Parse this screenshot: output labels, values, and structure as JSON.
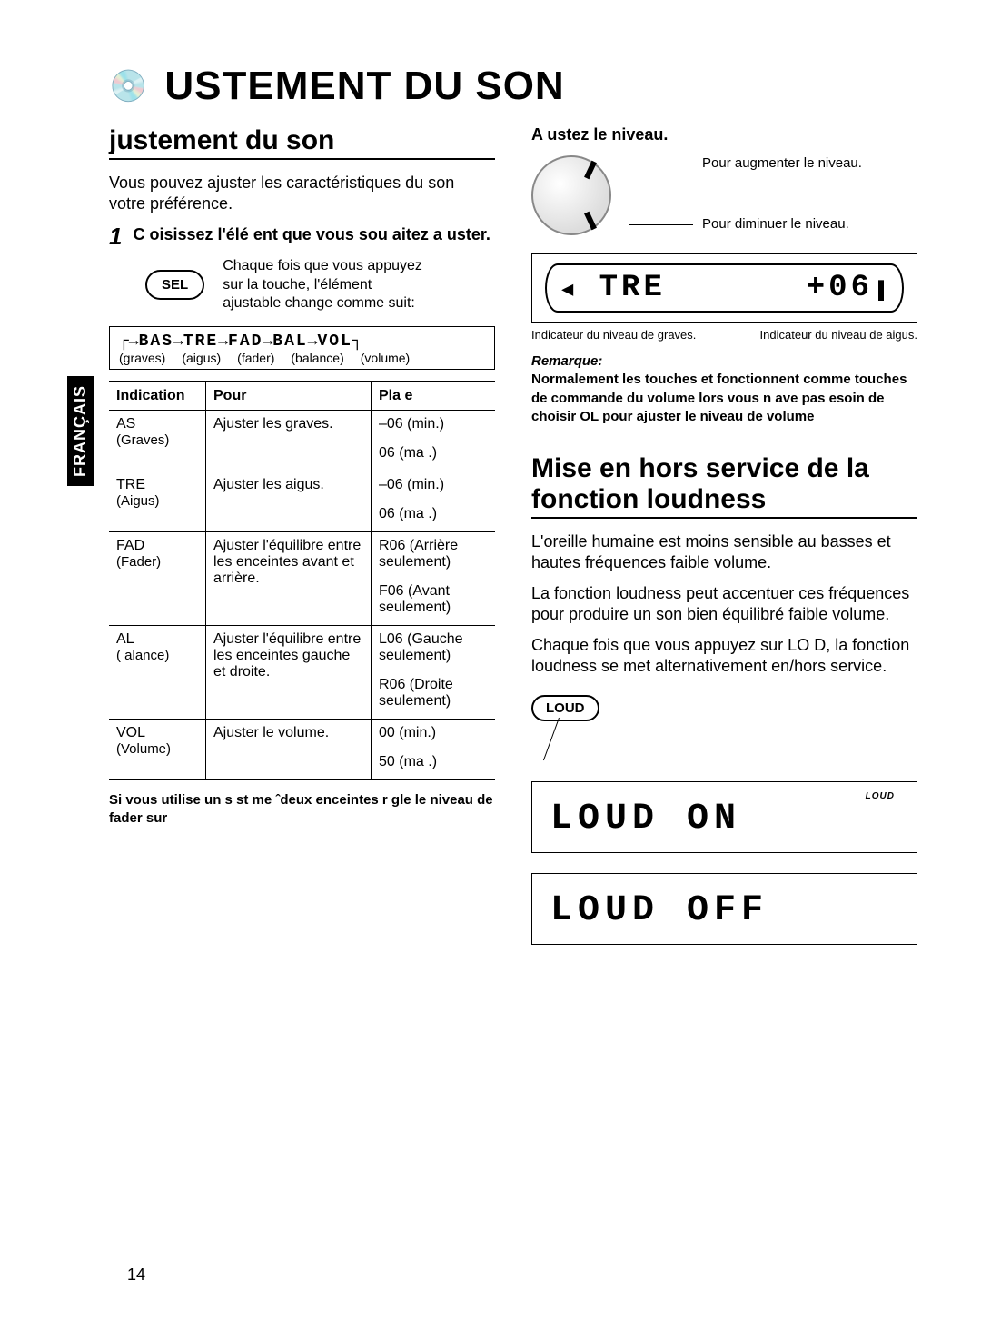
{
  "page": {
    "title_main": "USTEMENT DU SON",
    "language_tab": "FRANÇAIS",
    "page_number": "14"
  },
  "left": {
    "section_heading": "justement du son",
    "intro": "Vous pouvez ajuster les caractéristiques du son votre préférence.",
    "step1": {
      "num": "1",
      "title": "C oisissez l'élé ent que vous sou aitez a uster.",
      "sel_label": "SEL",
      "sel_desc": "Chaque fois que vous appuyez sur la touche, l'élément ajustable change comme suit:",
      "flow_items": [
        "BAS",
        "TRE",
        "FAD",
        "BAL",
        "VOL"
      ],
      "flow_labels": [
        "(graves)",
        "(aigus)",
        "(fader)",
        "(balance)",
        "(volume)"
      ]
    },
    "table": {
      "headers": [
        "Indication",
        "Pour",
        "Pla e"
      ],
      "rows": [
        {
          "ind": "AS",
          "ind_sub": "(Graves)",
          "pour": "Ajuster les graves.",
          "range1": "–06 (min.)",
          "range2": "06 (ma .)"
        },
        {
          "ind": "TRE",
          "ind_sub": "(Aigus)",
          "pour": "Ajuster les aigus.",
          "range1": "–06 (min.)",
          "range2": "06 (ma .)"
        },
        {
          "ind": "FAD",
          "ind_sub": "(Fader)",
          "pour": "Ajuster l'équilibre entre les enceintes avant et arrière.",
          "range1": "R06 (Arrière seulement)",
          "range2": "F06 (Avant seulement)"
        },
        {
          "ind": "AL",
          "ind_sub": "( alance)",
          "pour": "Ajuster l'équilibre entre les enceintes gauche et droite.",
          "range1": "L06 (Gauche seulement)",
          "range2": "R06 (Droite seulement)"
        },
        {
          "ind": "VOL",
          "ind_sub": "(Volume)",
          "pour": "Ajuster le volume.",
          "range1": "00 (min.)",
          "range2": "50 (ma .)"
        }
      ]
    },
    "footnote": "Si vous utilise  un s st me ˆdeux enceintes  r gle le niveau de fader sur"
  },
  "right": {
    "step2_title": "A ustez le niveau.",
    "knob": {
      "up": "Pour augmenter le niveau.",
      "down": "Pour diminuer le niveau."
    },
    "lcd1": {
      "left_text": "TRE",
      "right_text": "+06",
      "cap_left": "Indicateur du niveau de graves.",
      "cap_right": "Indicateur du niveau de aigus."
    },
    "remark": {
      "label": "Remarque:",
      "text": "Normalement  les touches  et  fonctionnent comme touches de commande du volume   lors  vous n ave pas  esoin de choisir  OL pour ajuster le niveau de volume"
    },
    "loudness": {
      "heading": "Mise en hors service de la fonction loudness",
      "p1": "L'oreille humaine est moins sensible au   basses et hautes fréquences  faible volume.",
      "p2": "La fonction loudness peut accentuer ces fréquences pour produire un son bien équilibré faible volume.",
      "p3": "Chaque fois que vous appuyez sur LO D, la fonction loudness se met alternativement en/hors service.",
      "button": "LOUD",
      "lcd_on_badge": "LOUD",
      "lcd_on": "LOUD ON",
      "lcd_off": "LOUD OFF"
    }
  }
}
